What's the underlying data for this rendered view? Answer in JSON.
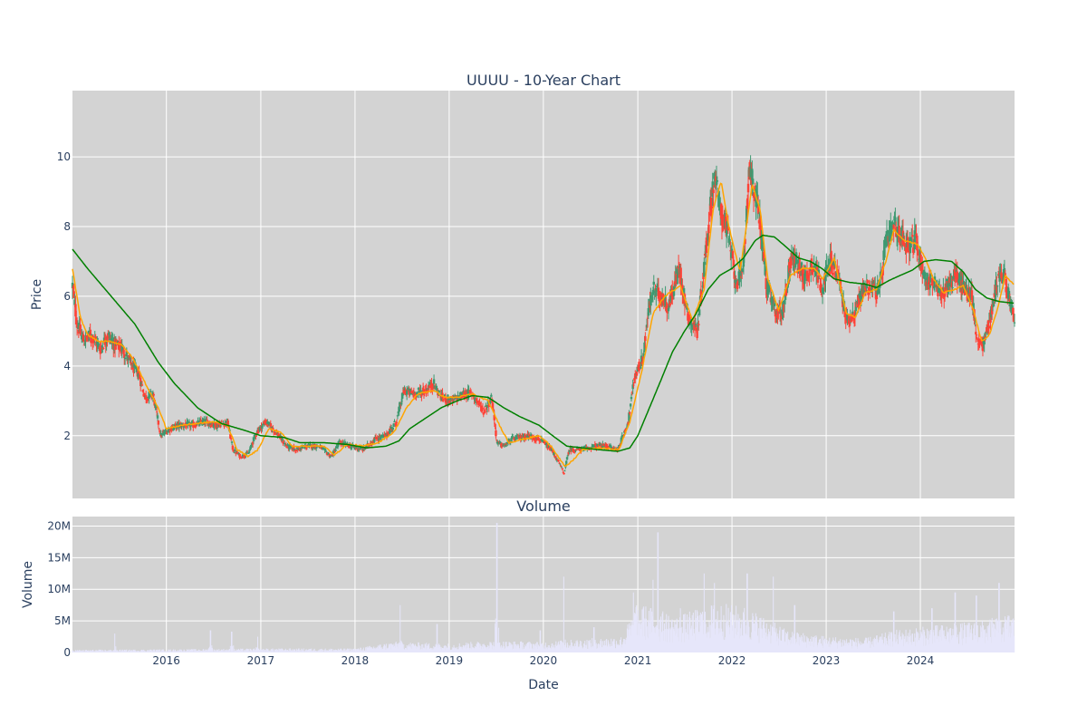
{
  "chart_data": [
    {
      "type": "candlestick",
      "title": "UUUU - 10-Year Chart",
      "ylabel": "Price",
      "xlim": [
        "2015-01-02",
        "2024-12-31"
      ],
      "ylim": [
        0.2,
        11.9
      ],
      "y_ticks": [
        2,
        4,
        6,
        8,
        10
      ],
      "x_ticks": [
        "2016",
        "2017",
        "2018",
        "2019",
        "2020",
        "2021",
        "2022",
        "2023",
        "2024"
      ],
      "grid": true,
      "plot_bg": "#d3d3d3",
      "colors": {
        "increasing": "#3d9970",
        "decreasing": "#ff4136",
        "ma_short": "#ffa500",
        "ma_long": "#008000"
      },
      "price_path": [
        [
          "2015-01-02",
          6.3
        ],
        [
          "2015-01-20",
          5.2
        ],
        [
          "2015-02-15",
          4.7
        ],
        [
          "2015-03-15",
          4.9
        ],
        [
          "2015-04-20",
          4.5
        ],
        [
          "2015-05-20",
          4.9
        ],
        [
          "2015-06-15",
          4.6
        ],
        [
          "2015-07-15",
          4.5
        ],
        [
          "2015-08-20",
          4.0
        ],
        [
          "2015-09-15",
          3.8
        ],
        [
          "2015-10-10",
          3.1
        ],
        [
          "2015-11-10",
          3.2
        ],
        [
          "2015-12-10",
          2.0
        ],
        [
          "2016-01-15",
          2.2
        ],
        [
          "2016-02-15",
          2.3
        ],
        [
          "2016-04-10",
          2.3
        ],
        [
          "2016-06-01",
          2.4
        ],
        [
          "2016-07-15",
          2.3
        ],
        [
          "2016-08-25",
          2.4
        ],
        [
          "2016-09-15",
          1.6
        ],
        [
          "2016-10-15",
          1.4
        ],
        [
          "2016-11-15",
          1.5
        ],
        [
          "2016-12-15",
          2.1
        ],
        [
          "2017-01-20",
          2.4
        ],
        [
          "2017-03-01",
          2.1
        ],
        [
          "2017-04-10",
          1.7
        ],
        [
          "2017-05-20",
          1.6
        ],
        [
          "2017-07-01",
          1.7
        ],
        [
          "2017-08-15",
          1.7
        ],
        [
          "2017-10-01",
          1.4
        ],
        [
          "2017-11-01",
          1.8
        ],
        [
          "2017-12-15",
          1.7
        ],
        [
          "2018-02-01",
          1.6
        ],
        [
          "2018-03-20",
          1.9
        ],
        [
          "2018-05-01",
          2.0
        ],
        [
          "2018-06-10",
          2.4
        ],
        [
          "2018-07-10",
          3.3
        ],
        [
          "2018-08-15",
          3.2
        ],
        [
          "2018-10-01",
          3.3
        ],
        [
          "2018-11-01",
          3.5
        ],
        [
          "2018-12-01",
          3.1
        ],
        [
          "2019-01-15",
          3.0
        ],
        [
          "2019-03-01",
          3.2
        ],
        [
          "2019-04-01",
          3.2
        ],
        [
          "2019-05-15",
          2.7
        ],
        [
          "2019-06-15",
          3.1
        ],
        [
          "2019-07-05",
          1.8
        ],
        [
          "2019-08-01",
          1.7
        ],
        [
          "2019-09-01",
          1.9
        ],
        [
          "2019-11-01",
          2.0
        ],
        [
          "2019-12-15",
          1.9
        ],
        [
          "2020-02-01",
          1.6
        ],
        [
          "2020-03-10",
          1.1
        ],
        [
          "2020-03-20",
          0.9
        ],
        [
          "2020-04-10",
          1.6
        ],
        [
          "2020-06-01",
          1.6
        ],
        [
          "2020-07-15",
          1.7
        ],
        [
          "2020-09-01",
          1.7
        ],
        [
          "2020-10-15",
          1.6
        ],
        [
          "2020-11-25",
          2.4
        ],
        [
          "2020-12-20",
          3.7
        ],
        [
          "2021-01-20",
          4.2
        ],
        [
          "2021-02-10",
          5.5
        ],
        [
          "2021-03-01",
          6.2
        ],
        [
          "2021-04-01",
          6.0
        ],
        [
          "2021-05-01",
          5.7
        ],
        [
          "2021-06-10",
          6.8
        ],
        [
          "2021-07-15",
          5.4
        ],
        [
          "2021-08-20",
          5.0
        ],
        [
          "2021-09-10",
          6.5
        ],
        [
          "2021-10-01",
          8.0
        ],
        [
          "2021-10-25",
          9.5
        ],
        [
          "2021-11-15",
          8.5
        ],
        [
          "2021-12-10",
          8.0
        ],
        [
          "2022-01-15",
          6.5
        ],
        [
          "2022-02-10",
          6.5
        ],
        [
          "2022-03-10",
          9.8
        ],
        [
          "2022-03-25",
          9.0
        ],
        [
          "2022-04-15",
          8.5
        ],
        [
          "2022-05-15",
          6.3
        ],
        [
          "2022-06-15",
          5.6
        ],
        [
          "2022-07-15",
          5.5
        ],
        [
          "2022-08-20",
          7.2
        ],
        [
          "2022-09-20",
          6.8
        ],
        [
          "2022-10-15",
          6.5
        ],
        [
          "2022-11-10",
          7.0
        ],
        [
          "2022-12-15",
          6.3
        ],
        [
          "2023-01-20",
          7.0
        ],
        [
          "2023-02-20",
          6.5
        ],
        [
          "2023-03-20",
          5.3
        ],
        [
          "2023-04-20",
          5.5
        ],
        [
          "2023-05-25",
          6.2
        ],
        [
          "2023-06-25",
          6.3
        ],
        [
          "2023-07-25",
          6.1
        ],
        [
          "2023-08-20",
          7.5
        ],
        [
          "2023-09-20",
          8.0
        ],
        [
          "2023-10-15",
          7.8
        ],
        [
          "2023-11-15",
          7.5
        ],
        [
          "2023-12-15",
          7.6
        ],
        [
          "2024-01-20",
          6.5
        ],
        [
          "2024-02-20",
          6.4
        ],
        [
          "2024-03-20",
          6.0
        ],
        [
          "2024-04-20",
          6.4
        ],
        [
          "2024-05-20",
          6.6
        ],
        [
          "2024-06-20",
          6.2
        ],
        [
          "2024-07-20",
          6.0
        ],
        [
          "2024-08-05",
          4.8
        ],
        [
          "2024-09-01",
          4.6
        ],
        [
          "2024-10-01",
          5.5
        ],
        [
          "2024-11-01",
          6.7
        ],
        [
          "2024-11-25",
          6.5
        ],
        [
          "2024-12-31",
          5.2
        ]
      ],
      "ma_short": [
        [
          "2015-01-02",
          6.8
        ],
        [
          "2015-02-01",
          5.4
        ],
        [
          "2015-03-01",
          4.9
        ],
        [
          "2015-04-15",
          4.7
        ],
        [
          "2015-06-01",
          4.7
        ],
        [
          "2015-07-15",
          4.6
        ],
        [
          "2015-08-25",
          4.2
        ],
        [
          "2015-10-05",
          3.6
        ],
        [
          "2015-11-01",
          3.2
        ],
        [
          "2015-12-01",
          2.8
        ],
        [
          "2016-01-01",
          2.2
        ],
        [
          "2016-03-01",
          2.3
        ],
        [
          "2016-05-01",
          2.35
        ],
        [
          "2016-07-01",
          2.4
        ],
        [
          "2016-08-25",
          2.3
        ],
        [
          "2016-10-01",
          1.6
        ],
        [
          "2016-11-15",
          1.4
        ],
        [
          "2016-12-20",
          1.6
        ],
        [
          "2017-02-01",
          2.2
        ],
        [
          "2017-03-20",
          2.1
        ],
        [
          "2017-05-01",
          1.7
        ],
        [
          "2017-07-01",
          1.7
        ],
        [
          "2017-09-01",
          1.7
        ],
        [
          "2017-10-15",
          1.45
        ],
        [
          "2017-12-01",
          1.75
        ],
        [
          "2018-02-01",
          1.7
        ],
        [
          "2018-04-01",
          1.8
        ],
        [
          "2018-06-01",
          2.1
        ],
        [
          "2018-07-20",
          2.8
        ],
        [
          "2018-09-01",
          3.2
        ],
        [
          "2018-11-01",
          3.3
        ],
        [
          "2018-12-15",
          3.1
        ],
        [
          "2019-02-01",
          3.1
        ],
        [
          "2019-04-01",
          3.2
        ],
        [
          "2019-06-01",
          3.0
        ],
        [
          "2019-07-15",
          2.3
        ],
        [
          "2019-08-20",
          1.8
        ],
        [
          "2019-10-15",
          1.9
        ],
        [
          "2019-12-15",
          2.0
        ],
        [
          "2020-02-01",
          1.7
        ],
        [
          "2020-03-25",
          1.1
        ],
        [
          "2020-04-25",
          1.3
        ],
        [
          "2020-06-01",
          1.6
        ],
        [
          "2020-08-01",
          1.65
        ],
        [
          "2020-10-20",
          1.6
        ],
        [
          "2020-12-01",
          2.4
        ],
        [
          "2021-01-15",
          3.8
        ],
        [
          "2021-03-01",
          5.5
        ],
        [
          "2021-04-15",
          6.0
        ],
        [
          "2021-06-15",
          6.3
        ],
        [
          "2021-08-01",
          5.3
        ],
        [
          "2021-09-15",
          6.2
        ],
        [
          "2021-10-20",
          8.5
        ],
        [
          "2021-11-20",
          9.3
        ],
        [
          "2021-12-20",
          8.0
        ],
        [
          "2022-02-01",
          6.7
        ],
        [
          "2022-03-20",
          9.2
        ],
        [
          "2022-04-20",
          8.5
        ],
        [
          "2022-05-20",
          6.5
        ],
        [
          "2022-07-01",
          5.6
        ],
        [
          "2022-08-15",
          6.6
        ],
        [
          "2022-10-01",
          6.8
        ],
        [
          "2022-11-15",
          6.8
        ],
        [
          "2022-12-20",
          6.5
        ],
        [
          "2023-02-01",
          7.1
        ],
        [
          "2023-03-20",
          5.5
        ],
        [
          "2023-04-25",
          5.4
        ],
        [
          "2023-06-01",
          6.1
        ],
        [
          "2023-07-15",
          6.2
        ],
        [
          "2023-08-20",
          7.0
        ],
        [
          "2023-09-20",
          7.9
        ],
        [
          "2023-11-01",
          7.6
        ],
        [
          "2023-12-20",
          7.5
        ],
        [
          "2024-01-20",
          7.1
        ],
        [
          "2024-02-20",
          6.5
        ],
        [
          "2024-04-01",
          6.1
        ],
        [
          "2024-05-15",
          6.2
        ],
        [
          "2024-06-15",
          6.3
        ],
        [
          "2024-07-25",
          5.6
        ],
        [
          "2024-08-25",
          4.7
        ],
        [
          "2024-09-25",
          4.9
        ],
        [
          "2024-10-25",
          5.6
        ],
        [
          "2024-11-25",
          6.6
        ],
        [
          "2024-12-31",
          6.3
        ]
      ],
      "ma_long": [
        [
          "2015-01-02",
          7.35
        ],
        [
          "2015-03-01",
          6.8
        ],
        [
          "2015-06-01",
          6.0
        ],
        [
          "2015-09-01",
          5.2
        ],
        [
          "2015-12-01",
          4.1
        ],
        [
          "2016-02-01",
          3.5
        ],
        [
          "2016-05-01",
          2.8
        ],
        [
          "2016-08-01",
          2.35
        ],
        [
          "2016-11-01",
          2.15
        ],
        [
          "2017-01-01",
          2.0
        ],
        [
          "2017-04-01",
          1.95
        ],
        [
          "2017-06-01",
          1.8
        ],
        [
          "2017-09-01",
          1.8
        ],
        [
          "2017-12-01",
          1.75
        ],
        [
          "2018-02-15",
          1.65
        ],
        [
          "2018-05-01",
          1.7
        ],
        [
          "2018-06-20",
          1.85
        ],
        [
          "2018-08-01",
          2.2
        ],
        [
          "2018-10-01",
          2.5
        ],
        [
          "2018-12-01",
          2.8
        ],
        [
          "2019-02-01",
          3.0
        ],
        [
          "2019-04-01",
          3.15
        ],
        [
          "2019-06-01",
          3.1
        ],
        [
          "2019-08-01",
          2.8
        ],
        [
          "2019-10-01",
          2.55
        ],
        [
          "2019-12-15",
          2.3
        ],
        [
          "2020-02-15",
          1.95
        ],
        [
          "2020-04-01",
          1.7
        ],
        [
          "2020-06-01",
          1.65
        ],
        [
          "2020-08-01",
          1.6
        ],
        [
          "2020-10-15",
          1.55
        ],
        [
          "2020-12-01",
          1.65
        ],
        [
          "2021-01-01",
          2.0
        ],
        [
          "2021-02-15",
          2.8
        ],
        [
          "2021-04-01",
          3.6
        ],
        [
          "2021-05-15",
          4.4
        ],
        [
          "2021-07-01",
          5.0
        ],
        [
          "2021-08-15",
          5.5
        ],
        [
          "2021-10-01",
          6.2
        ],
        [
          "2021-11-15",
          6.6
        ],
        [
          "2022-01-01",
          6.8
        ],
        [
          "2022-02-15",
          7.1
        ],
        [
          "2022-04-01",
          7.6
        ],
        [
          "2022-05-01",
          7.75
        ],
        [
          "2022-06-15",
          7.7
        ],
        [
          "2022-08-01",
          7.4
        ],
        [
          "2022-09-15",
          7.1
        ],
        [
          "2022-11-01",
          7.0
        ],
        [
          "2022-12-15",
          6.8
        ],
        [
          "2023-02-01",
          6.5
        ],
        [
          "2023-04-01",
          6.4
        ],
        [
          "2023-06-01",
          6.35
        ],
        [
          "2023-07-15",
          6.25
        ],
        [
          "2023-09-01",
          6.45
        ],
        [
          "2023-10-15",
          6.6
        ],
        [
          "2023-12-01",
          6.75
        ],
        [
          "2024-01-15",
          7.0
        ],
        [
          "2024-03-01",
          7.05
        ],
        [
          "2024-05-01",
          7.0
        ],
        [
          "2024-06-15",
          6.7
        ],
        [
          "2024-08-01",
          6.2
        ],
        [
          "2024-09-15",
          5.95
        ],
        [
          "2024-11-01",
          5.85
        ],
        [
          "2024-12-31",
          5.8
        ]
      ]
    },
    {
      "type": "bar",
      "title": "Volume",
      "xlabel": "Date",
      "ylabel": "Volume",
      "ylim": [
        0,
        21500000
      ],
      "y_ticks": [
        0,
        5000000,
        10000000,
        15000000,
        20000000
      ],
      "y_tick_labels": [
        "0",
        "5M",
        "10M",
        "15M",
        "20M"
      ],
      "x_ticks": [
        "2016",
        "2017",
        "2018",
        "2019",
        "2020",
        "2021",
        "2022",
        "2023",
        "2024"
      ],
      "grid": true,
      "bar_color": "#e6e6fa",
      "base_path": [
        [
          "2015-01-02",
          300000
        ],
        [
          "2016-01-01",
          350000
        ],
        [
          "2017-01-01",
          450000
        ],
        [
          "2018-01-01",
          450000
        ],
        [
          "2018-06-01",
          1200000
        ],
        [
          "2019-01-01",
          1000000
        ],
        [
          "2019-06-01",
          1300000
        ],
        [
          "2020-01-01",
          1200000
        ],
        [
          "2020-06-01",
          1500000
        ],
        [
          "2020-11-01",
          1800000
        ],
        [
          "2021-01-01",
          5500000
        ],
        [
          "2021-06-01",
          4000000
        ],
        [
          "2021-11-01",
          5500000
        ],
        [
          "2022-03-01",
          5000000
        ],
        [
          "2022-08-01",
          2500000
        ],
        [
          "2023-01-01",
          1800000
        ],
        [
          "2023-06-01",
          1600000
        ],
        [
          "2023-10-01",
          2500000
        ],
        [
          "2024-03-01",
          3000000
        ],
        [
          "2024-09-01",
          3500000
        ],
        [
          "2024-12-31",
          4500000
        ]
      ],
      "spikes": [
        [
          "2015-06-15",
          3000000
        ],
        [
          "2016-06-20",
          3500000
        ],
        [
          "2016-09-10",
          3300000
        ],
        [
          "2016-12-20",
          2500000
        ],
        [
          "2018-06-25",
          7500000
        ],
        [
          "2018-11-15",
          4500000
        ],
        [
          "2019-07-05",
          20500000
        ],
        [
          "2019-12-20",
          3500000
        ],
        [
          "2020-03-20",
          12000000
        ],
        [
          "2020-07-15",
          4000000
        ],
        [
          "2020-12-15",
          9500000
        ],
        [
          "2021-03-01",
          11500000
        ],
        [
          "2021-03-20",
          19000000
        ],
        [
          "2021-06-15",
          7000000
        ],
        [
          "2021-09-15",
          12500000
        ],
        [
          "2021-10-25",
          11000000
        ],
        [
          "2022-03-01",
          12500000
        ],
        [
          "2022-06-10",
          12000000
        ],
        [
          "2022-09-01",
          7500000
        ],
        [
          "2023-09-20",
          6500000
        ],
        [
          "2024-02-15",
          7000000
        ],
        [
          "2024-05-15",
          9500000
        ],
        [
          "2024-08-05",
          9000000
        ],
        [
          "2024-11-01",
          11000000
        ]
      ]
    }
  ]
}
